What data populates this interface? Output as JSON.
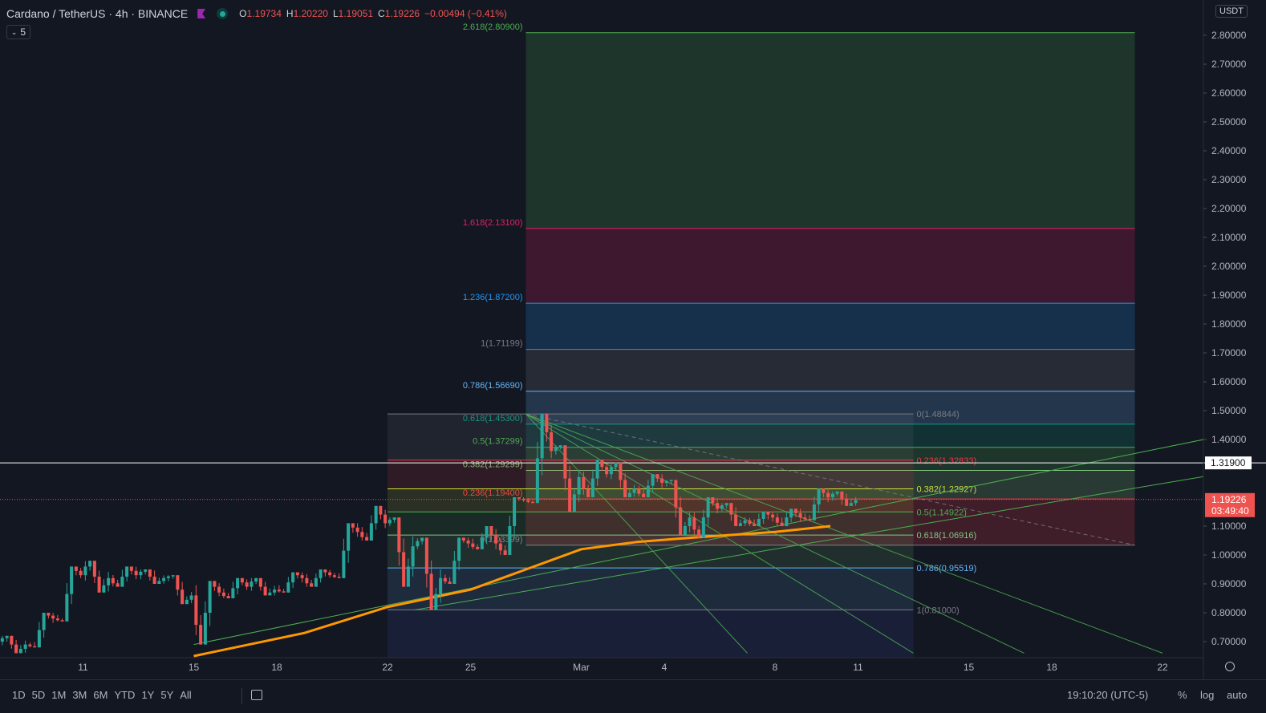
{
  "header": {
    "symbol": "Cardano / TetherUS · 4h · BINANCE",
    "o_label": "O",
    "o_value": "1.19734",
    "h_label": "H",
    "h_value": "1.20220",
    "l_label": "L",
    "l_value": "1.19051",
    "c_label": "C",
    "c_value": "1.19226",
    "change": "−0.00494 (−0.41%)",
    "indicator_count": "5",
    "flag_color": "#9c27b0",
    "live_dot_color": "#26a69a"
  },
  "price_axis": {
    "currency": "USDT",
    "labels": [
      "2.80000",
      "2.70000",
      "2.60000",
      "2.50000",
      "2.40000",
      "2.30000",
      "2.20000",
      "2.10000",
      "2.00000",
      "1.90000",
      "1.80000",
      "1.70000",
      "1.60000",
      "1.50000",
      "1.40000",
      "1.10000",
      "1.00000",
      "0.90000",
      "0.80000",
      "0.70000"
    ],
    "marker_line": "1.31900",
    "last_price": "1.19226",
    "countdown": "03:49:40"
  },
  "time_axis": {
    "labels": [
      {
        "text": "11",
        "date": "2021-02-11"
      },
      {
        "text": "15",
        "date": "2021-02-15"
      },
      {
        "text": "18",
        "date": "2021-02-18"
      },
      {
        "text": "22",
        "date": "2021-02-22"
      },
      {
        "text": "25",
        "date": "2021-02-25"
      },
      {
        "text": "Mar",
        "date": "2021-03-01"
      },
      {
        "text": "4",
        "date": "2021-03-04"
      },
      {
        "text": "8",
        "date": "2021-03-08"
      },
      {
        "text": "11",
        "date": "2021-03-11"
      },
      {
        "text": "15",
        "date": "2021-03-15"
      },
      {
        "text": "18",
        "date": "2021-03-18"
      },
      {
        "text": "22",
        "date": "2021-03-22"
      }
    ]
  },
  "chart_data": {
    "type": "candlestick",
    "symbol": "ADA/USDT",
    "interval": "4h",
    "exchange": "BINANCE",
    "x_range": [
      "2021-02-08",
      "2021-03-24"
    ],
    "y_range": [
      0.66,
      2.85
    ],
    "candles_daily_ohlc": [
      {
        "date": "2021-02-08",
        "o": 0.7,
        "h": 0.72,
        "l": 0.66,
        "c": 0.69
      },
      {
        "date": "2021-02-09",
        "o": 0.69,
        "h": 0.8,
        "l": 0.68,
        "c": 0.78
      },
      {
        "date": "2021-02-10",
        "o": 0.78,
        "h": 0.96,
        "l": 0.77,
        "c": 0.93
      },
      {
        "date": "2021-02-11",
        "o": 0.93,
        "h": 0.98,
        "l": 0.87,
        "c": 0.92
      },
      {
        "date": "2021-02-12",
        "o": 0.92,
        "h": 0.96,
        "l": 0.89,
        "c": 0.93
      },
      {
        "date": "2021-02-13",
        "o": 0.93,
        "h": 0.95,
        "l": 0.9,
        "c": 0.92
      },
      {
        "date": "2021-02-14",
        "o": 0.92,
        "h": 0.93,
        "l": 0.83,
        "c": 0.86
      },
      {
        "date": "2021-02-15",
        "o": 0.86,
        "h": 0.91,
        "l": 0.69,
        "c": 0.87
      },
      {
        "date": "2021-02-16",
        "o": 0.87,
        "h": 0.92,
        "l": 0.85,
        "c": 0.89
      },
      {
        "date": "2021-02-17",
        "o": 0.89,
        "h": 0.92,
        "l": 0.86,
        "c": 0.88
      },
      {
        "date": "2021-02-18",
        "o": 0.88,
        "h": 0.94,
        "l": 0.87,
        "c": 0.92
      },
      {
        "date": "2021-02-19",
        "o": 0.92,
        "h": 0.95,
        "l": 0.89,
        "c": 0.93
      },
      {
        "date": "2021-02-20",
        "o": 0.93,
        "h": 1.11,
        "l": 0.92,
        "c": 1.08
      },
      {
        "date": "2021-02-21",
        "o": 1.08,
        "h": 1.17,
        "l": 1.05,
        "c": 1.11
      },
      {
        "date": "2021-02-22",
        "o": 1.11,
        "h": 1.13,
        "l": 0.89,
        "c": 1.03
      },
      {
        "date": "2021-02-23",
        "o": 1.03,
        "h": 1.06,
        "l": 0.81,
        "c": 0.92
      },
      {
        "date": "2021-02-24",
        "o": 0.92,
        "h": 1.06,
        "l": 0.9,
        "c": 1.04
      },
      {
        "date": "2021-02-25",
        "o": 1.04,
        "h": 1.1,
        "l": 1.02,
        "c": 1.04
      },
      {
        "date": "2021-02-26",
        "o": 1.04,
        "h": 1.2,
        "l": 1.0,
        "c": 1.19
      },
      {
        "date": "2021-02-27",
        "o": 1.19,
        "h": 1.49,
        "l": 1.18,
        "c": 1.36
      },
      {
        "date": "2021-02-28",
        "o": 1.36,
        "h": 1.38,
        "l": 1.15,
        "c": 1.27
      },
      {
        "date": "2021-03-01",
        "o": 1.27,
        "h": 1.33,
        "l": 1.2,
        "c": 1.28
      },
      {
        "date": "2021-03-02",
        "o": 1.28,
        "h": 1.32,
        "l": 1.2,
        "c": 1.23
      },
      {
        "date": "2021-03-03",
        "o": 1.23,
        "h": 1.28,
        "l": 1.2,
        "c": 1.25
      },
      {
        "date": "2021-03-04",
        "o": 1.25,
        "h": 1.26,
        "l": 1.07,
        "c": 1.13
      },
      {
        "date": "2021-03-05",
        "o": 1.13,
        "h": 1.2,
        "l": 1.06,
        "c": 1.16
      },
      {
        "date": "2021-03-06",
        "o": 1.16,
        "h": 1.18,
        "l": 1.1,
        "c": 1.12
      },
      {
        "date": "2021-03-07",
        "o": 1.12,
        "h": 1.15,
        "l": 1.1,
        "c": 1.13
      },
      {
        "date": "2021-03-08",
        "o": 1.13,
        "h": 1.16,
        "l": 1.1,
        "c": 1.13
      },
      {
        "date": "2021-03-09",
        "o": 1.13,
        "h": 1.23,
        "l": 1.12,
        "c": 1.2
      },
      {
        "date": "2021-03-10",
        "o": 1.2,
        "h": 1.22,
        "l": 1.17,
        "c": 1.19
      }
    ],
    "last": {
      "o": 1.19734,
      "h": 1.2022,
      "l": 1.19051,
      "c": 1.19226
    },
    "horizontal_line": 1.319,
    "fib_extension": {
      "x_start": "2021-02-27",
      "x_end": "2021-03-21",
      "label_color": "#787b86",
      "levels": [
        {
          "label": "2.618(2.80900)",
          "value": 2.809,
          "color": "#4caf50"
        },
        {
          "label": "1.618(2.13100)",
          "value": 2.131,
          "color": "#e91e63"
        },
        {
          "label": "1.236(1.87200)",
          "value": 1.872,
          "color": "#2196f3"
        },
        {
          "label": "1(1.71199)",
          "value": 1.71199,
          "color": "#787b86"
        },
        {
          "label": "0.786(1.56690)",
          "value": 1.5669,
          "color": "#64b5f6"
        },
        {
          "label": "0.618(1.45300)",
          "value": 1.453,
          "color": "#089981"
        },
        {
          "label": "0.5(1.37299)",
          "value": 1.37299,
          "color": "#4caf50"
        },
        {
          "label": "0.382(1.29299)",
          "value": 1.29299,
          "color": "#81c784"
        },
        {
          "label": "0.236(1.19400)",
          "value": 1.194,
          "color": "#f23645"
        },
        {
          "label": "0(1.03399)",
          "value": 1.03399,
          "color": "#787b86"
        }
      ]
    },
    "fib_retracement": {
      "x_start": "2021-02-22",
      "x_end": "2021-03-13",
      "levels": [
        {
          "label": "0(1.48844)",
          "value": 1.48844,
          "color": "#787b86"
        },
        {
          "label": "0.236(1.32833)",
          "value": 1.32833,
          "color": "#f23645"
        },
        {
          "label": "0.382(1.22927)",
          "value": 1.22927,
          "color": "#cddc39"
        },
        {
          "label": "0.5(1.14922)",
          "value": 1.14922,
          "color": "#4caf50"
        },
        {
          "label": "0.618(1.06916)",
          "value": 1.06916,
          "color": "#81c784"
        },
        {
          "label": "0.786(0.95519)",
          "value": 0.95519,
          "color": "#64b5f6"
        },
        {
          "label": "1(0.81000)",
          "value": 0.81,
          "color": "#787b86"
        }
      ]
    },
    "moving_average": {
      "color": "#ff9800",
      "points": [
        [
          "2021-02-15",
          0.65
        ],
        [
          "2021-02-19",
          0.73
        ],
        [
          "2021-02-22",
          0.82
        ],
        [
          "2021-02-25",
          0.88
        ],
        [
          "2021-02-27",
          0.95
        ],
        [
          "2021-03-01",
          1.02
        ],
        [
          "2021-03-03",
          1.045
        ],
        [
          "2021-03-05",
          1.06
        ],
        [
          "2021-03-08",
          1.08
        ],
        [
          "2021-03-09",
          1.09
        ],
        [
          "2021-03-10",
          1.1
        ]
      ]
    },
    "fan_origin": [
      "2021-02-27",
      1.48844
    ],
    "fan_lines": [
      {
        "to": [
          "2021-03-21",
          1.03399
        ],
        "style": "dashed"
      },
      {
        "to": [
          "2021-03-22",
          0.66
        ]
      },
      {
        "to": [
          "2021-03-17",
          0.66
        ]
      },
      {
        "to": [
          "2021-03-13",
          0.66
        ]
      },
      {
        "to": [
          "2021-03-07",
          0.66
        ]
      }
    ],
    "trend_lines": [
      {
        "from": [
          "2021-02-15",
          0.69
        ],
        "to": [
          "2021-03-24",
          1.41
        ]
      },
      {
        "from": [
          "2021-02-23",
          0.81
        ],
        "to": [
          "2021-03-24",
          1.28
        ]
      }
    ],
    "grid": false
  },
  "bottom_bar": {
    "ranges": [
      "1D",
      "5D",
      "1M",
      "3M",
      "6M",
      "YTD",
      "1Y",
      "5Y",
      "All"
    ],
    "clock": "19:10:20 (UTC-5)",
    "percent": "%",
    "log": "log",
    "auto": "auto"
  },
  "colors": {
    "background": "#131722",
    "bull": "#26a69a",
    "bear": "#ef5350",
    "text": "#b2b5be"
  }
}
